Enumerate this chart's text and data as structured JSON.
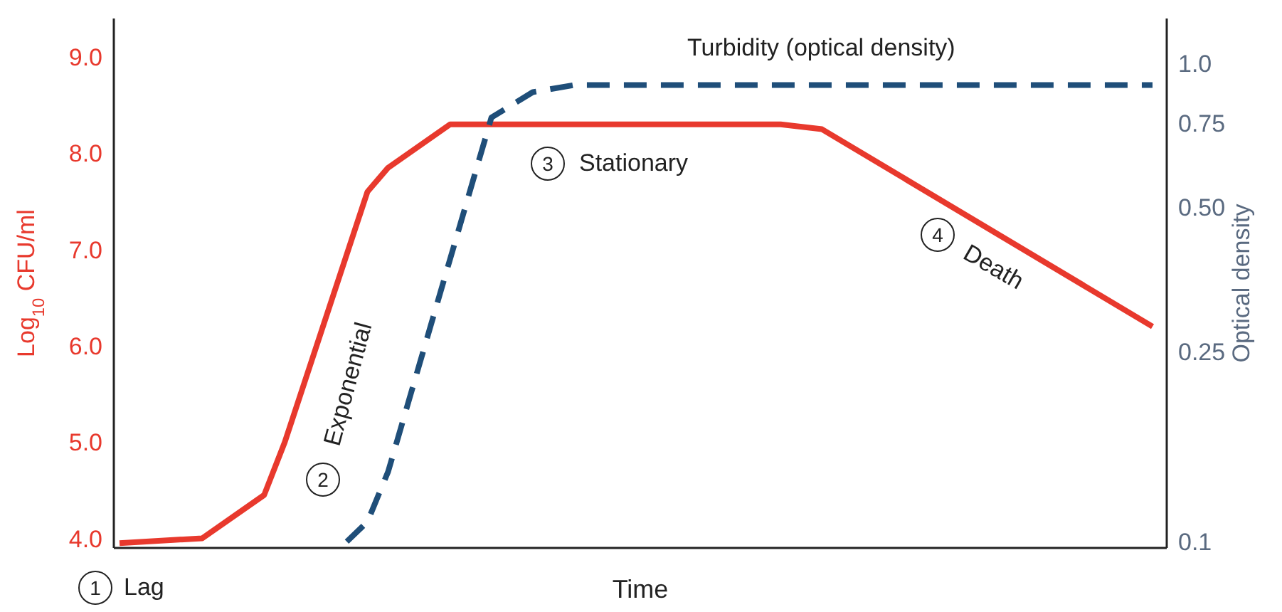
{
  "chart_data": {
    "type": "line",
    "xlabel": "Time",
    "ylabel": "Log$_{10}$ CFU/ml",
    "y2label": "Optical density",
    "categories": [
      null,
      null,
      null,
      null,
      null,
      null,
      null,
      null,
      null,
      null,
      null,
      null,
      null,
      null,
      null,
      null,
      null,
      null,
      null,
      null,
      null,
      null,
      null,
      null,
      null,
      null,
      null,
      null,
      null,
      null,
      null,
      null,
      null,
      null,
      null,
      null,
      null,
      null,
      null,
      null,
      null,
      null,
      null,
      null,
      null,
      null,
      null,
      null,
      null,
      null,
      null
    ],
    "ylim": [
      3.9,
      9.4
    ],
    "yticks": [
      {
        "value": 4,
        "label": "4.0"
      },
      {
        "value": 5,
        "label": "5.0"
      },
      {
        "value": 6,
        "label": "6.0"
      },
      {
        "value": 7,
        "label": "7.0"
      },
      {
        "value": 8,
        "label": "8.0"
      },
      {
        "value": 9,
        "label": "9.0"
      }
    ],
    "y2lim": [
      0.097,
      1.24
    ],
    "y2ticks": [
      0.1,
      0.25,
      {
        "value": 0.5,
        "label": "0.50"
      },
      0.75,
      {
        "value": 1,
        "label": "1.0"
      }
    ],
    "log": "y2",
    "marker": "none",
    "series": [
      {
        "color": "#e8392d",
        "line_style": "solid",
        "values": [
          3.95,
          null,
          null,
          null,
          4.0,
          null,
          null,
          4.45,
          5.0,
          null,
          null,
          null,
          7.6,
          7.85,
          null,
          null,
          8.3,
          null,
          null,
          null,
          null,
          null,
          null,
          null,
          null,
          null,
          null,
          null,
          8.3,
          null,
          null,
          null,
          8.3,
          null,
          8.25,
          null,
          null,
          null,
          null,
          null,
          null,
          null,
          null,
          null,
          null,
          null,
          null,
          null,
          null,
          null,
          6.2
        ]
      },
      {
        "name": "Turbidity (optical density)",
        "axis": "y2",
        "color": "#1f4e79",
        "line_style": "dashed",
        "values": [
          null,
          null,
          null,
          null,
          null,
          null,
          null,
          null,
          null,
          null,
          null,
          0.1,
          0.11,
          0.14,
          null,
          null,
          null,
          null,
          0.77,
          null,
          0.87,
          null,
          0.9,
          null,
          null,
          null,
          null,
          null,
          null,
          null,
          null,
          null,
          null,
          null,
          null,
          null,
          null,
          null,
          null,
          null,
          null,
          null,
          null,
          null,
          null,
          null,
          null,
          null,
          null,
          null,
          0.9
        ]
      }
    ],
    "annotations": [
      "1",
      "Lag",
      "2",
      "Exponential",
      "3",
      "Stationary",
      "4",
      "Death"
    ]
  }
}
